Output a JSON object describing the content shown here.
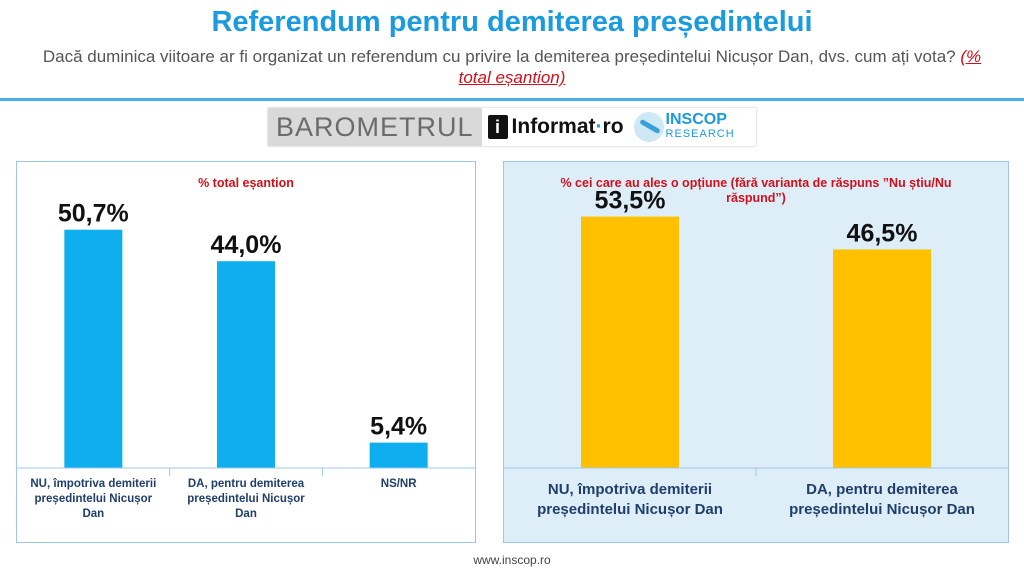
{
  "header": {
    "title": "Referendum pentru demiterea președintelui",
    "subtitle": "Dacă duminica viitoare ar fi organizat un referendum cu privire la demiterea președintelui Nicușor Dan, dvs. cum ați vota?",
    "subtitle_highlight": "(% total eșantion)"
  },
  "logo": {
    "barometer": "BAROMETRUL",
    "partner_1_mark": "i",
    "partner_1_name": "Informat",
    "partner_1_dot": "·",
    "partner_1_tld": "ro",
    "partner_2_top": "INSCOP",
    "partner_2_bottom": "RESEARCH"
  },
  "colors": {
    "title": "#1a9be0",
    "bar_left": "#0eaeef",
    "bar_right": "#ffc000",
    "highlight": "#d0101a"
  },
  "chart_data": [
    {
      "type": "bar",
      "title": "% total eșantion",
      "categories": [
        "NU, împotriva demiterii președintelui Nicușor Dan",
        "DA, pentru demiterea președintelui Nicușor Dan",
        "NS/NR"
      ],
      "values": [
        50.7,
        44.0,
        5.4
      ],
      "value_labels": [
        "50,7%",
        "44,0%",
        "5,4%"
      ],
      "ylim": [
        0,
        60
      ],
      "grid": false
    },
    {
      "type": "bar",
      "title": "% cei care au ales o opțiune (fără varianta de răspuns ”Nu știu/Nu răspund”)",
      "categories": [
        "NU, împotriva demiterii președintelui Nicușor Dan",
        "DA, pentru demiterea președintelui Nicușor Dan"
      ],
      "values": [
        53.5,
        46.5
      ],
      "value_labels": [
        "53,5%",
        "46,5%"
      ],
      "ylim": [
        0,
        60
      ],
      "grid": false
    }
  ],
  "footer": {
    "url": "www.inscop.ro"
  }
}
